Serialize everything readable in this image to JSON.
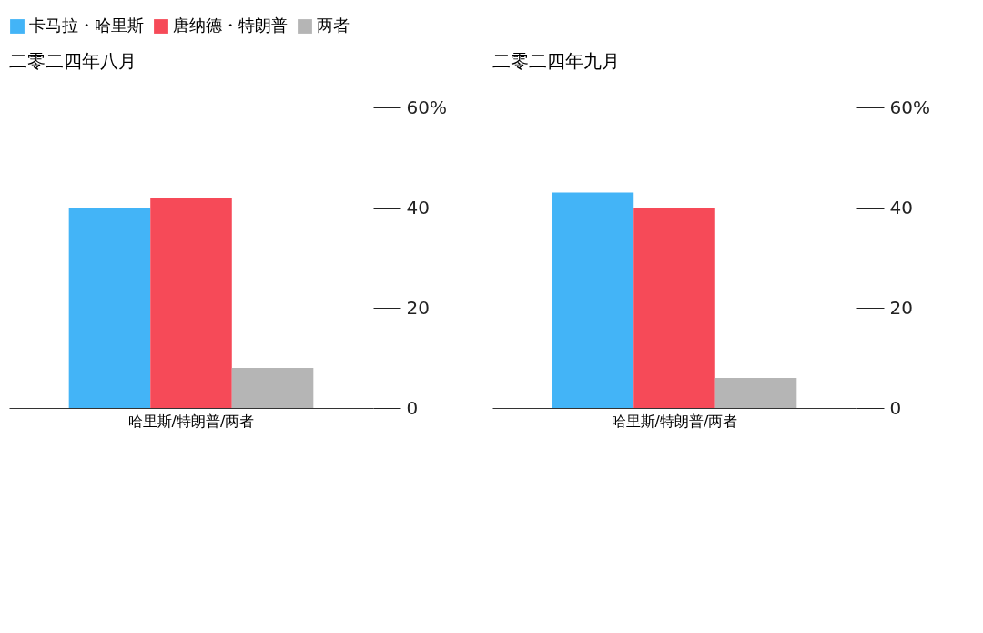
{
  "chart_data": [
    {
      "type": "bar",
      "title": "二零二四年八月",
      "categories": [
        "哈里斯/特朗普/两者"
      ],
      "series": [
        {
          "name": "卡马拉・哈里斯",
          "color": "#43b4f7",
          "values": [
            40
          ]
        },
        {
          "name": "唐纳德・特朗普",
          "color": "#f64a58",
          "values": [
            42
          ]
        },
        {
          "name": "两者",
          "color": "#b5b5b5",
          "values": [
            8
          ]
        }
      ],
      "ylim": [
        0,
        60
      ],
      "yticks": [
        0,
        20,
        40,
        {
          "value": 60,
          "label": "60%"
        }
      ],
      "grid": false,
      "legend": "top left"
    },
    {
      "type": "bar",
      "title": "二零二四年九月",
      "categories": [
        "哈里斯/特朗普/两者"
      ],
      "series": [
        {
          "name": "卡马拉・哈里斯",
          "color": "#43b4f7",
          "values": [
            43
          ]
        },
        {
          "name": "唐纳德・特朗普",
          "color": "#f64a58",
          "values": [
            40
          ]
        },
        {
          "name": "两者",
          "color": "#b5b5b5",
          "values": [
            6
          ]
        }
      ],
      "ylim": [
        0,
        60
      ],
      "yticks": [
        0,
        20,
        40,
        {
          "value": 60,
          "label": "60%"
        }
      ],
      "grid": false,
      "legend": "top left"
    }
  ]
}
